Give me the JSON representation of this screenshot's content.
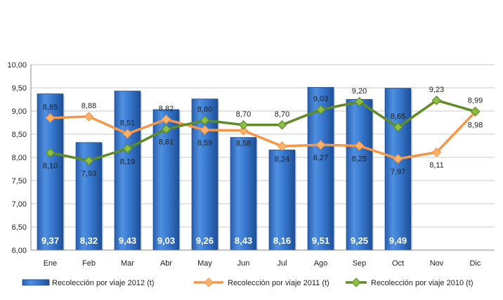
{
  "chart_data": {
    "type": "bar",
    "categories": [
      "Ene",
      "Feb",
      "Mar",
      "Abr",
      "May",
      "Jun",
      "Jul",
      "Ago",
      "Sep",
      "Oct",
      "Nov",
      "Dic"
    ],
    "ylim": [
      6.0,
      10.0
    ],
    "yticks": [
      "6,00",
      "6,50",
      "7,00",
      "7,50",
      "8,00",
      "8,50",
      "9,00",
      "9,50",
      "10,00"
    ],
    "grid": true,
    "legend_position": "bottom",
    "series": [
      {
        "name": "Recolección por viaje 2012 (t)",
        "kind": "bar",
        "color": "#2e6fc4",
        "values": [
          9.37,
          8.32,
          9.43,
          9.03,
          9.26,
          8.43,
          8.16,
          9.51,
          9.25,
          9.49,
          null,
          null
        ],
        "labels": [
          "9,37",
          "8,32",
          "9,43",
          "9,03",
          "9,26",
          "8,43",
          "8,16",
          "9,51",
          "9,25",
          "9,49",
          "",
          ""
        ]
      },
      {
        "name": "Recolección por viaje 2011 (t)",
        "kind": "line",
        "color": "#f79646",
        "marker_fill": "#fbb36b",
        "values": [
          8.85,
          8.88,
          8.51,
          8.82,
          8.59,
          8.58,
          8.24,
          8.27,
          8.25,
          7.97,
          8.11,
          8.98
        ],
        "labels": [
          "8,85",
          "8,88",
          "8,51",
          "8,82",
          "8,59",
          "8,58",
          "8,24",
          "8,27",
          "8,25",
          "7,97",
          "8,11",
          "8,98"
        ]
      },
      {
        "name": "Recolección por viaje 2010 (t)",
        "kind": "line",
        "color": "#5f8b26",
        "marker_fill": "#8cbf45",
        "values": [
          8.1,
          7.93,
          8.19,
          8.61,
          8.8,
          8.7,
          8.7,
          9.03,
          9.2,
          8.65,
          9.23,
          8.99
        ],
        "labels": [
          "8,10",
          "7,93",
          "8,19",
          "8,61",
          "8,80",
          "8,70",
          "8,70",
          "9,03",
          "9,20",
          "8,65",
          "9,23",
          "8,99"
        ]
      }
    ]
  }
}
